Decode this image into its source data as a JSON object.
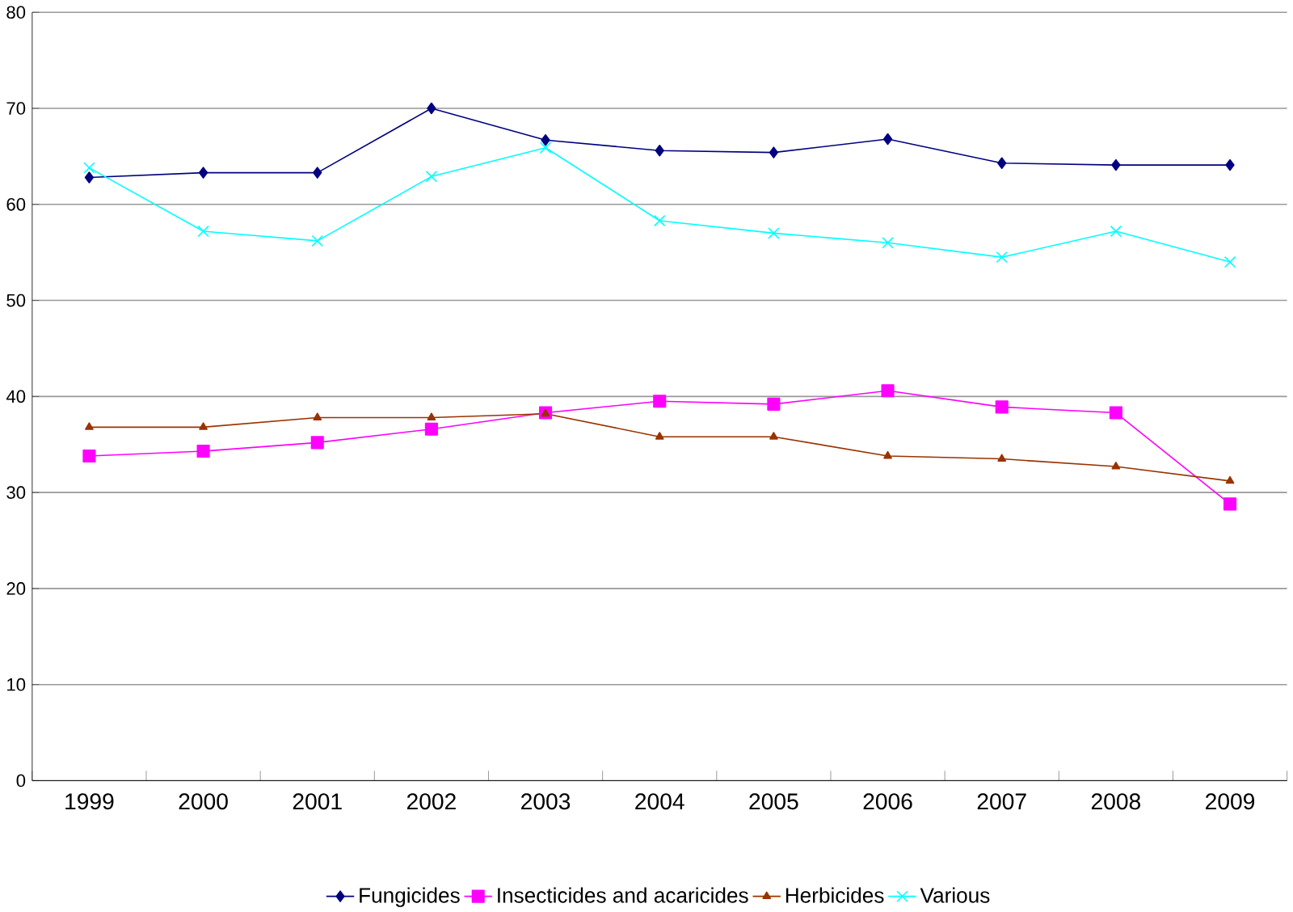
{
  "chart_data": {
    "type": "line",
    "categories": [
      "1999",
      "2000",
      "2001",
      "2002",
      "2003",
      "2004",
      "2005",
      "2006",
      "2007",
      "2008",
      "2009"
    ],
    "series": [
      {
        "name": "Fungicides",
        "color": "#000080",
        "marker": "diamond",
        "values": [
          62.8,
          63.3,
          63.3,
          70.0,
          66.7,
          65.6,
          65.4,
          66.8,
          64.3,
          64.1,
          64.1
        ]
      },
      {
        "name": "Insecticides and acaricides",
        "color": "#ff00ff",
        "marker": "square",
        "values": [
          33.8,
          34.3,
          35.2,
          36.6,
          38.3,
          39.5,
          39.2,
          40.6,
          38.9,
          38.3,
          28.8
        ]
      },
      {
        "name": "Herbicides",
        "color": "#993300",
        "marker": "triangle",
        "values": [
          36.8,
          36.8,
          37.8,
          37.8,
          38.2,
          35.8,
          35.8,
          33.8,
          33.5,
          32.7,
          31.2
        ]
      },
      {
        "name": "Various",
        "color": "#00ffff",
        "marker": "cross",
        "values": [
          63.8,
          57.2,
          56.2,
          62.9,
          65.9,
          58.3,
          57.0,
          56.0,
          54.5,
          57.2,
          54.0
        ]
      }
    ],
    "ylim": [
      0,
      80
    ],
    "yticks": [
      0,
      10,
      20,
      30,
      40,
      50,
      60,
      70,
      80
    ],
    "grid": "y",
    "legend": "bottom",
    "line_style": "solid"
  }
}
